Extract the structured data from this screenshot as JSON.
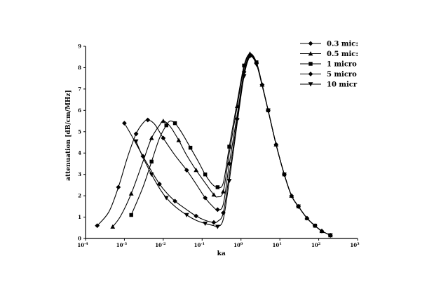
{
  "chart_data": {
    "type": "line",
    "title": "",
    "xlabel": "ka",
    "ylabel": "attenuation [dB/cm/MHz]",
    "xscale": "log",
    "xlim": [
      0.0001,
      1000
    ],
    "ylim": [
      0,
      9
    ],
    "x_ticks": [
      {
        "base": "10",
        "exp": "-4"
      },
      {
        "base": "10",
        "exp": "-3"
      },
      {
        "base": "10",
        "exp": "-2"
      },
      {
        "base": "10",
        "exp": "-1"
      },
      {
        "base": "10",
        "exp": "0"
      },
      {
        "base": "10",
        "exp": "1"
      },
      {
        "base": "10",
        "exp": "2"
      },
      {
        "base": "10",
        "exp": "3"
      }
    ],
    "y_ticks": [
      "0",
      "1",
      "2",
      "3",
      "4",
      "5",
      "6",
      "7",
      "8",
      "9"
    ],
    "grid": false,
    "legend_position": "top-right",
    "series": [
      {
        "name": "0.3 mic:",
        "marker": "diamond",
        "points": [
          [
            0.0002,
            0.6
          ],
          [
            0.0004,
            1.25
          ],
          [
            0.0007,
            2.4
          ],
          [
            0.0012,
            3.8
          ],
          [
            0.002,
            4.9
          ],
          [
            0.003,
            5.4
          ],
          [
            0.004,
            5.55
          ],
          [
            0.006,
            5.35
          ],
          [
            0.01,
            4.7
          ],
          [
            0.02,
            3.9
          ],
          [
            0.04,
            3.2
          ],
          [
            0.07,
            2.55
          ],
          [
            0.12,
            1.9
          ],
          [
            0.2,
            1.45
          ],
          [
            0.25,
            1.35
          ],
          [
            0.35,
            1.6
          ],
          [
            0.5,
            3.5
          ],
          [
            0.8,
            5.8
          ],
          [
            1.2,
            7.8
          ],
          [
            1.7,
            8.6
          ],
          [
            2.5,
            8.2
          ],
          [
            3.5,
            7.2
          ],
          [
            5,
            6.0
          ],
          [
            8,
            4.4
          ],
          [
            13,
            3.0
          ],
          [
            20,
            2.0
          ],
          [
            30,
            1.5
          ],
          [
            50,
            0.95
          ],
          [
            80,
            0.6
          ],
          [
            120,
            0.35
          ],
          [
            200,
            0.15
          ]
        ]
      },
      {
        "name": "0.5 mic:",
        "marker": "triangle-up",
        "points": [
          [
            0.0005,
            0.55
          ],
          [
            0.0008,
            1.05
          ],
          [
            0.0015,
            2.1
          ],
          [
            0.003,
            3.6
          ],
          [
            0.005,
            4.7
          ],
          [
            0.008,
            5.3
          ],
          [
            0.01,
            5.5
          ],
          [
            0.015,
            5.25
          ],
          [
            0.025,
            4.6
          ],
          [
            0.04,
            3.9
          ],
          [
            0.07,
            3.2
          ],
          [
            0.12,
            2.6
          ],
          [
            0.2,
            2.05
          ],
          [
            0.25,
            1.95
          ],
          [
            0.35,
            2.2
          ],
          [
            0.5,
            4.0
          ],
          [
            0.8,
            6.2
          ],
          [
            1.2,
            8.0
          ],
          [
            1.7,
            8.65
          ],
          [
            2.5,
            8.25
          ],
          [
            3.5,
            7.2
          ],
          [
            5,
            6.0
          ],
          [
            8,
            4.4
          ],
          [
            13,
            3.0
          ],
          [
            20,
            2.0
          ],
          [
            30,
            1.5
          ],
          [
            50,
            0.95
          ],
          [
            80,
            0.6
          ],
          [
            120,
            0.35
          ],
          [
            200,
            0.15
          ]
        ]
      },
      {
        "name": "1 micro",
        "marker": "square",
        "points": [
          [
            0.0015,
            1.1
          ],
          [
            0.003,
            2.4
          ],
          [
            0.005,
            3.6
          ],
          [
            0.008,
            4.7
          ],
          [
            0.012,
            5.3
          ],
          [
            0.015,
            5.5
          ],
          [
            0.02,
            5.4
          ],
          [
            0.03,
            4.95
          ],
          [
            0.05,
            4.25
          ],
          [
            0.08,
            3.6
          ],
          [
            0.12,
            3.0
          ],
          [
            0.18,
            2.55
          ],
          [
            0.25,
            2.4
          ],
          [
            0.35,
            2.6
          ],
          [
            0.5,
            4.3
          ],
          [
            0.8,
            6.4
          ],
          [
            1.2,
            8.1
          ],
          [
            1.7,
            8.65
          ],
          [
            2.5,
            8.25
          ],
          [
            3.5,
            7.2
          ],
          [
            5,
            6.0
          ],
          [
            8,
            4.4
          ],
          [
            13,
            3.0
          ],
          [
            20,
            2.0
          ],
          [
            30,
            1.5
          ],
          [
            50,
            0.95
          ],
          [
            80,
            0.6
          ],
          [
            120,
            0.35
          ],
          [
            200,
            0.15
          ]
        ]
      },
      {
        "name": "5 micro",
        "marker": "diamond",
        "points": [
          [
            0.001,
            5.4
          ],
          [
            0.0015,
            4.85
          ],
          [
            0.003,
            3.85
          ],
          [
            0.005,
            3.15
          ],
          [
            0.008,
            2.55
          ],
          [
            0.012,
            2.15
          ],
          [
            0.02,
            1.75
          ],
          [
            0.04,
            1.35
          ],
          [
            0.07,
            1.05
          ],
          [
            0.12,
            0.85
          ],
          [
            0.2,
            0.75
          ],
          [
            0.25,
            0.8
          ],
          [
            0.35,
            1.2
          ],
          [
            0.5,
            3.0
          ],
          [
            0.8,
            5.6
          ],
          [
            1.2,
            7.7
          ],
          [
            1.7,
            8.55
          ],
          [
            2.5,
            8.2
          ],
          [
            3.5,
            7.2
          ],
          [
            5,
            6.0
          ],
          [
            8,
            4.4
          ],
          [
            13,
            3.0
          ],
          [
            20,
            2.0
          ],
          [
            30,
            1.5
          ],
          [
            50,
            0.95
          ],
          [
            80,
            0.6
          ],
          [
            120,
            0.35
          ],
          [
            200,
            0.15
          ]
        ]
      },
      {
        "name": "10 micr",
        "marker": "triangle-down",
        "points": [
          [
            0.002,
            4.55
          ],
          [
            0.003,
            3.8
          ],
          [
            0.005,
            3.0
          ],
          [
            0.008,
            2.35
          ],
          [
            0.012,
            1.9
          ],
          [
            0.02,
            1.5
          ],
          [
            0.04,
            1.1
          ],
          [
            0.07,
            0.85
          ],
          [
            0.12,
            0.7
          ],
          [
            0.2,
            0.6
          ],
          [
            0.25,
            0.55
          ],
          [
            0.35,
            0.9
          ],
          [
            0.5,
            2.7
          ],
          [
            0.8,
            5.4
          ],
          [
            1.2,
            7.6
          ],
          [
            1.7,
            8.5
          ],
          [
            2.5,
            8.15
          ],
          [
            3.5,
            7.15
          ],
          [
            5,
            6.0
          ],
          [
            8,
            4.4
          ],
          [
            13,
            3.0
          ],
          [
            20,
            2.0
          ],
          [
            30,
            1.5
          ],
          [
            50,
            0.95
          ],
          [
            80,
            0.6
          ],
          [
            120,
            0.35
          ],
          [
            200,
            0.15
          ]
        ]
      }
    ]
  }
}
